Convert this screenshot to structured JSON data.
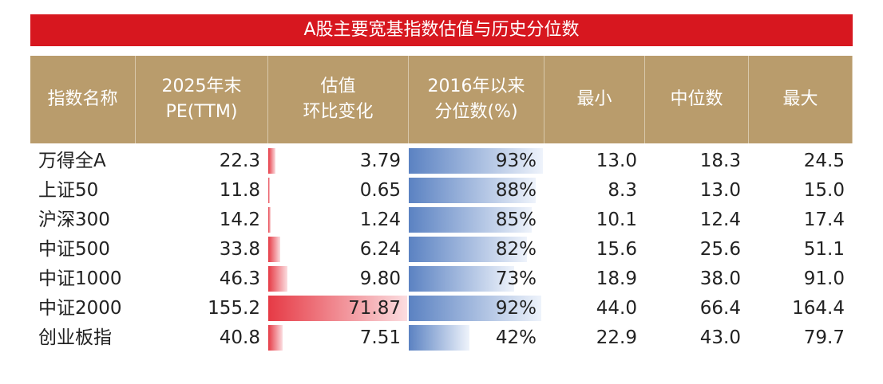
{
  "title": "A股主要宽基指数估值与历史分位数",
  "table": {
    "header": [
      "指数名称",
      "2025年末\nPE(TTM)",
      "估值\n环比变化",
      "2016年以来\n分位数(%)",
      "最小",
      "中位数",
      "最大"
    ],
    "rows": [
      [
        "万得全A",
        "22.3",
        "3.79",
        "93%",
        "13.0",
        "18.3",
        "24.5"
      ],
      [
        "上证50",
        "11.8",
        "0.65",
        "88%",
        "8.3",
        "13.0",
        "15.0"
      ],
      [
        "沪深300",
        "14.2",
        "1.24",
        "85%",
        "10.1",
        "12.4",
        "17.4"
      ],
      [
        "中证500",
        "33.8",
        "6.24",
        "82%",
        "15.6",
        "25.6",
        "51.1"
      ],
      [
        "中证1000",
        "46.3",
        "9.80",
        "73%",
        "18.9",
        "38.0",
        "91.0"
      ],
      [
        "中证2000",
        "155.2",
        "71.87",
        "92%",
        "44.0",
        "66.4",
        "164.4"
      ],
      [
        "创业板指",
        "40.8",
        "7.51",
        "42%",
        "22.9",
        "43.0",
        "79.7"
      ]
    ]
  }
}
